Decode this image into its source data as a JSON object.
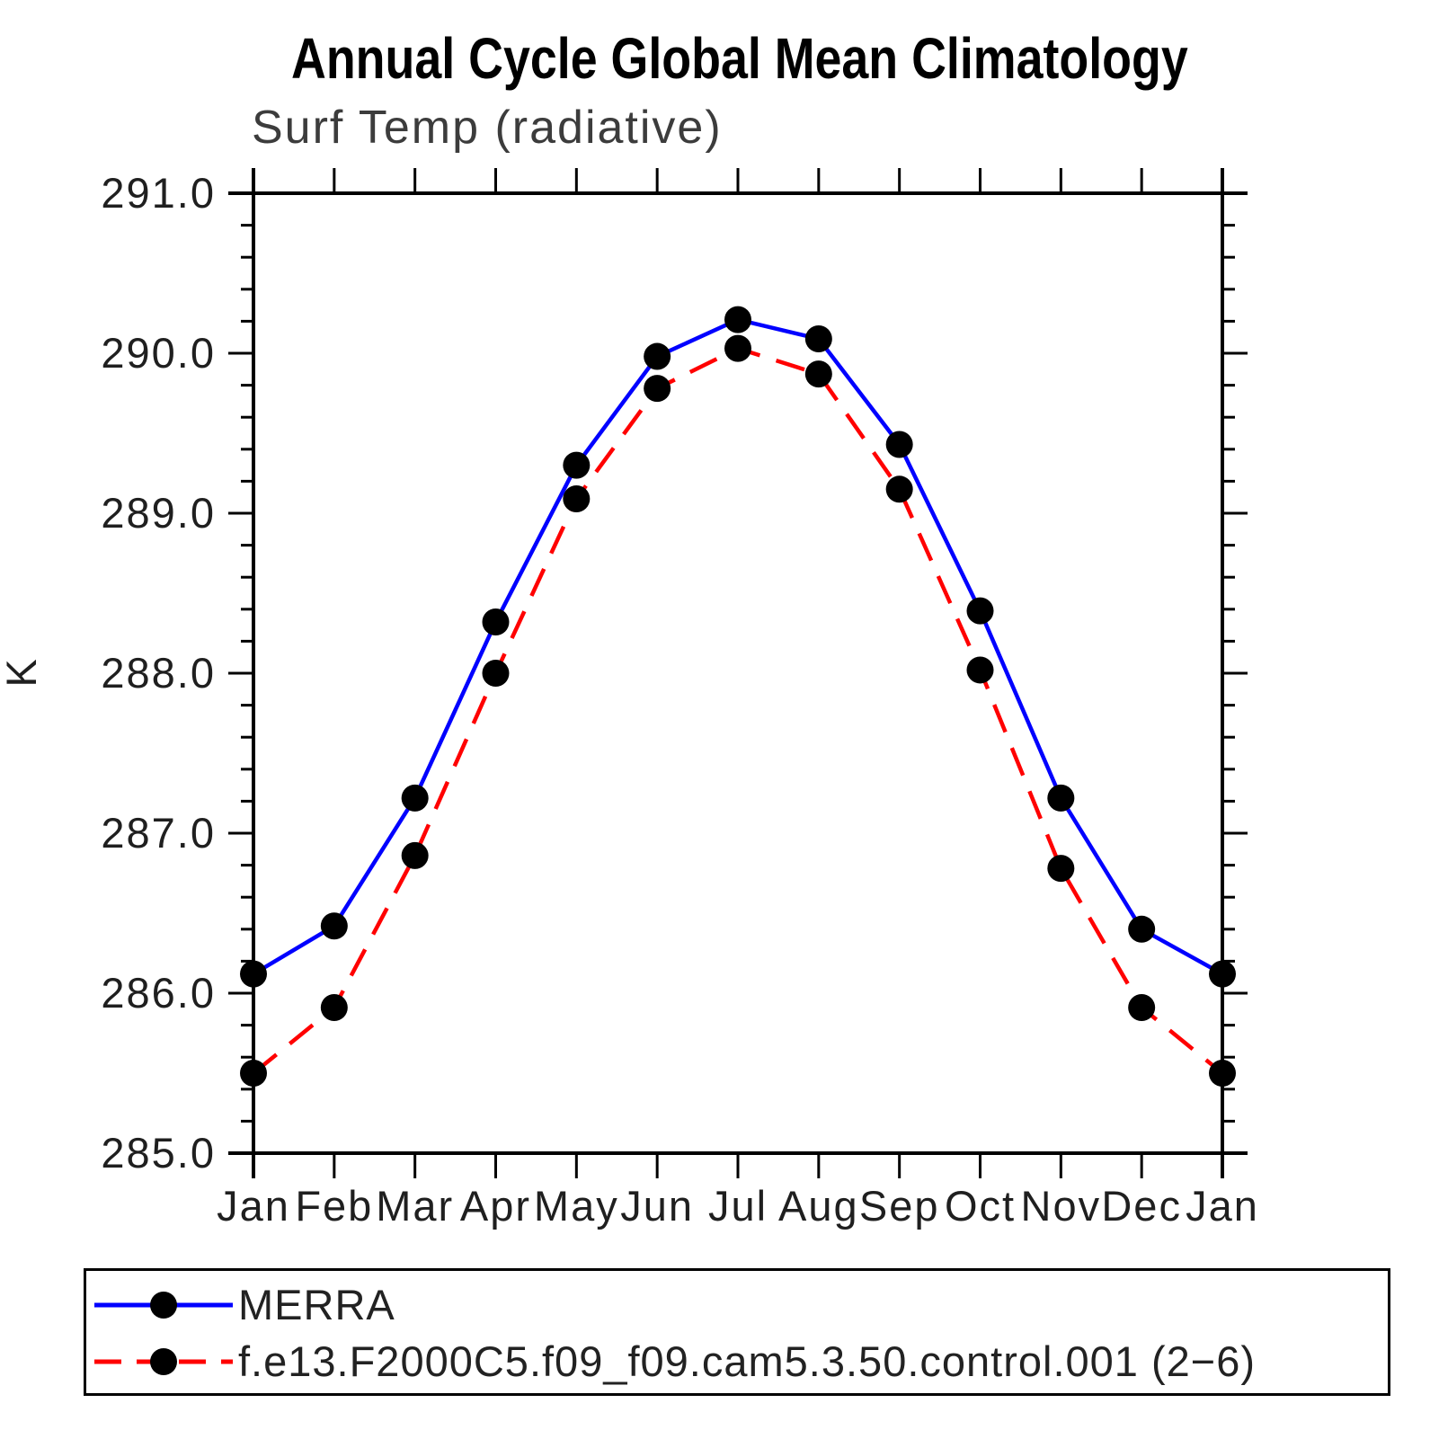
{
  "chart_data": {
    "type": "line",
    "title": "Annual Cycle Global Mean Climatology",
    "subtitle": "Surf Temp (radiative)",
    "ylabel": "K",
    "xlabel": "",
    "ylim": [
      285.0,
      291.0
    ],
    "ytick_major_step": 1.0,
    "ytick_minor_step": 0.2,
    "ytick_labels": [
      "285.0",
      "286.0",
      "287.0",
      "288.0",
      "289.0",
      "290.0",
      "291.0"
    ],
    "x_categories": [
      "Jan",
      "Feb",
      "Mar",
      "Apr",
      "May",
      "Jun",
      "Jul",
      "Aug",
      "Sep",
      "Oct",
      "Nov",
      "Dec",
      "Jan"
    ],
    "grid": false,
    "legend_position": "bottom-box",
    "marker": "filled-circle",
    "marker_color": "#000000",
    "axis_color": "#000000",
    "series": [
      {
        "name": "MERRA",
        "color": "#0000ff",
        "style": "solid",
        "values": [
          286.12,
          286.42,
          287.22,
          288.32,
          289.3,
          289.98,
          290.21,
          290.09,
          289.43,
          288.39,
          287.22,
          286.4,
          286.12
        ]
      },
      {
        "name": "f.e13.F2000C5.f09_f09.cam5.3.50.control.001 (2−6)",
        "color": "#ff0000",
        "style": "dashed",
        "values": [
          285.5,
          285.91,
          286.86,
          288.0,
          289.09,
          289.78,
          290.03,
          289.87,
          289.15,
          288.02,
          286.78,
          285.91,
          285.5
        ]
      }
    ]
  }
}
